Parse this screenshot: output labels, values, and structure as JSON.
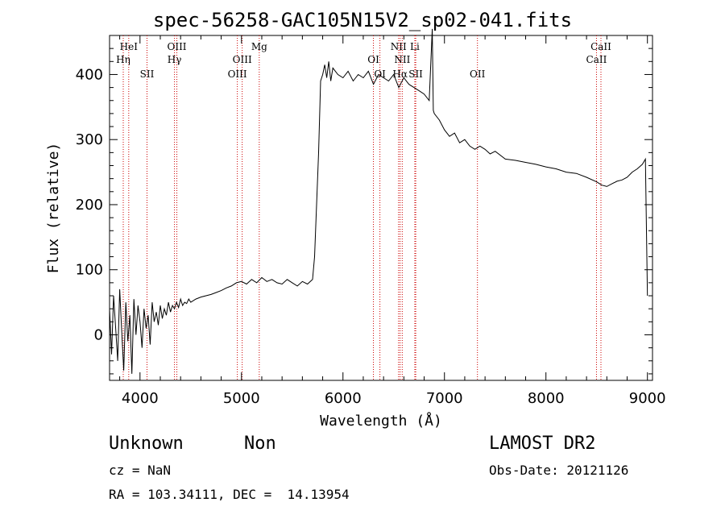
{
  "chart_data": {
    "type": "line",
    "title": "spec-56258-GAC105N15V2_sp02-041.fits",
    "xlabel": "Wavelength (Å)",
    "ylabel": "Flux (relative)",
    "xlim": [
      3700,
      9050
    ],
    "ylim": [
      -70,
      460
    ],
    "xticks": [
      4000,
      5000,
      6000,
      7000,
      8000,
      9000
    ],
    "yticks": [
      0,
      100,
      200,
      300,
      400
    ],
    "line_color": "#000000",
    "marker_color": "#cc0000",
    "series": [
      {
        "x": [
          3700,
          3720,
          3740,
          3760,
          3780,
          3800,
          3820,
          3840,
          3860,
          3880,
          3900,
          3920,
          3940,
          3960,
          3980,
          4000,
          4020,
          4040,
          4060,
          4080,
          4100,
          4120,
          4140,
          4160,
          4180,
          4200,
          4220,
          4240,
          4260,
          4280,
          4300,
          4320,
          4340,
          4360,
          4380,
          4400,
          4420,
          4440,
          4460,
          4480,
          4500,
          4550,
          4600,
          4650,
          4700,
          4750,
          4800,
          4850,
          4900,
          4950,
          5000,
          5050,
          5100,
          5150,
          5200,
          5250,
          5300,
          5350,
          5400,
          5450,
          5500,
          5550,
          5600,
          5650,
          5700,
          5720,
          5740,
          5760,
          5780,
          5800,
          5820,
          5840,
          5860,
          5880,
          5900,
          5950,
          6000,
          6050,
          6100,
          6150,
          6200,
          6250,
          6300,
          6350,
          6400,
          6450,
          6500,
          6550,
          6600,
          6650,
          6700,
          6750,
          6800,
          6850,
          6880,
          6890,
          6900,
          6950,
          7000,
          7050,
          7100,
          7150,
          7200,
          7250,
          7300,
          7350,
          7400,
          7450,
          7500,
          7600,
          7700,
          7800,
          7900,
          8000,
          8100,
          8200,
          8300,
          8400,
          8500,
          8550,
          8600,
          8650,
          8700,
          8750,
          8800,
          8850,
          8900,
          8950,
          8980,
          9000
        ],
        "y": [
          40,
          -30,
          60,
          10,
          -40,
          70,
          5,
          -55,
          50,
          -10,
          30,
          -60,
          55,
          0,
          45,
          20,
          -20,
          40,
          10,
          30,
          -15,
          50,
          20,
          35,
          15,
          45,
          25,
          40,
          30,
          50,
          35,
          45,
          40,
          50,
          42,
          55,
          45,
          50,
          48,
          55,
          50,
          55,
          58,
          60,
          62,
          65,
          68,
          72,
          75,
          80,
          82,
          78,
          85,
          80,
          88,
          82,
          85,
          80,
          78,
          85,
          80,
          75,
          82,
          78,
          85,
          120,
          200,
          280,
          390,
          400,
          415,
          395,
          420,
          390,
          410,
          400,
          395,
          405,
          390,
          400,
          395,
          405,
          385,
          400,
          395,
          390,
          400,
          380,
          395,
          385,
          380,
          375,
          370,
          360,
          470,
          345,
          340,
          330,
          315,
          305,
          310,
          295,
          300,
          290,
          285,
          290,
          285,
          278,
          282,
          270,
          268,
          265,
          262,
          258,
          255,
          250,
          248,
          242,
          235,
          230,
          228,
          232,
          236,
          238,
          242,
          250,
          255,
          262,
          270,
          60
        ]
      }
    ],
    "lines": [
      {
        "label": "HeI",
        "x": 3889,
        "row": 0
      },
      {
        "label": "Hη",
        "x": 3835,
        "row": 1
      },
      {
        "label": "SII",
        "x": 4069,
        "row": 2
      },
      {
        "label": "OIII",
        "x": 4363,
        "row": 0
      },
      {
        "label": "Hγ",
        "x": 4340,
        "row": 1
      },
      {
        "label": "OIII",
        "x": 5007,
        "row": 1
      },
      {
        "label": "OIII",
        "x": 4959,
        "row": 2
      },
      {
        "label": "Mg",
        "x": 5175,
        "row": 0
      },
      {
        "label": "OI",
        "x": 6300,
        "row": 1
      },
      {
        "label": "OI",
        "x": 6364,
        "row": 2
      },
      {
        "label": "NII",
        "x": 6548,
        "row": 0
      },
      {
        "label": "Li",
        "x": 6708,
        "row": 0
      },
      {
        "label": "NII",
        "x": 6584,
        "row": 1
      },
      {
        "label": "Hα",
        "x": 6563,
        "row": 2
      },
      {
        "label": "SII",
        "x": 6717,
        "row": 2
      },
      {
        "label": "OII",
        "x": 7325,
        "row": 2
      },
      {
        "label": "CaII",
        "x": 8542,
        "row": 0
      },
      {
        "label": "CaII",
        "x": 8498,
        "row": 1
      }
    ]
  },
  "info": {
    "object_class": "Unknown",
    "object_subclass": "Non",
    "survey": "LAMOST DR2",
    "cz": "cz = NaN",
    "obs_date": "Obs-Date: 20121126",
    "coords": "RA = 103.34111, DEC =  14.13954"
  }
}
